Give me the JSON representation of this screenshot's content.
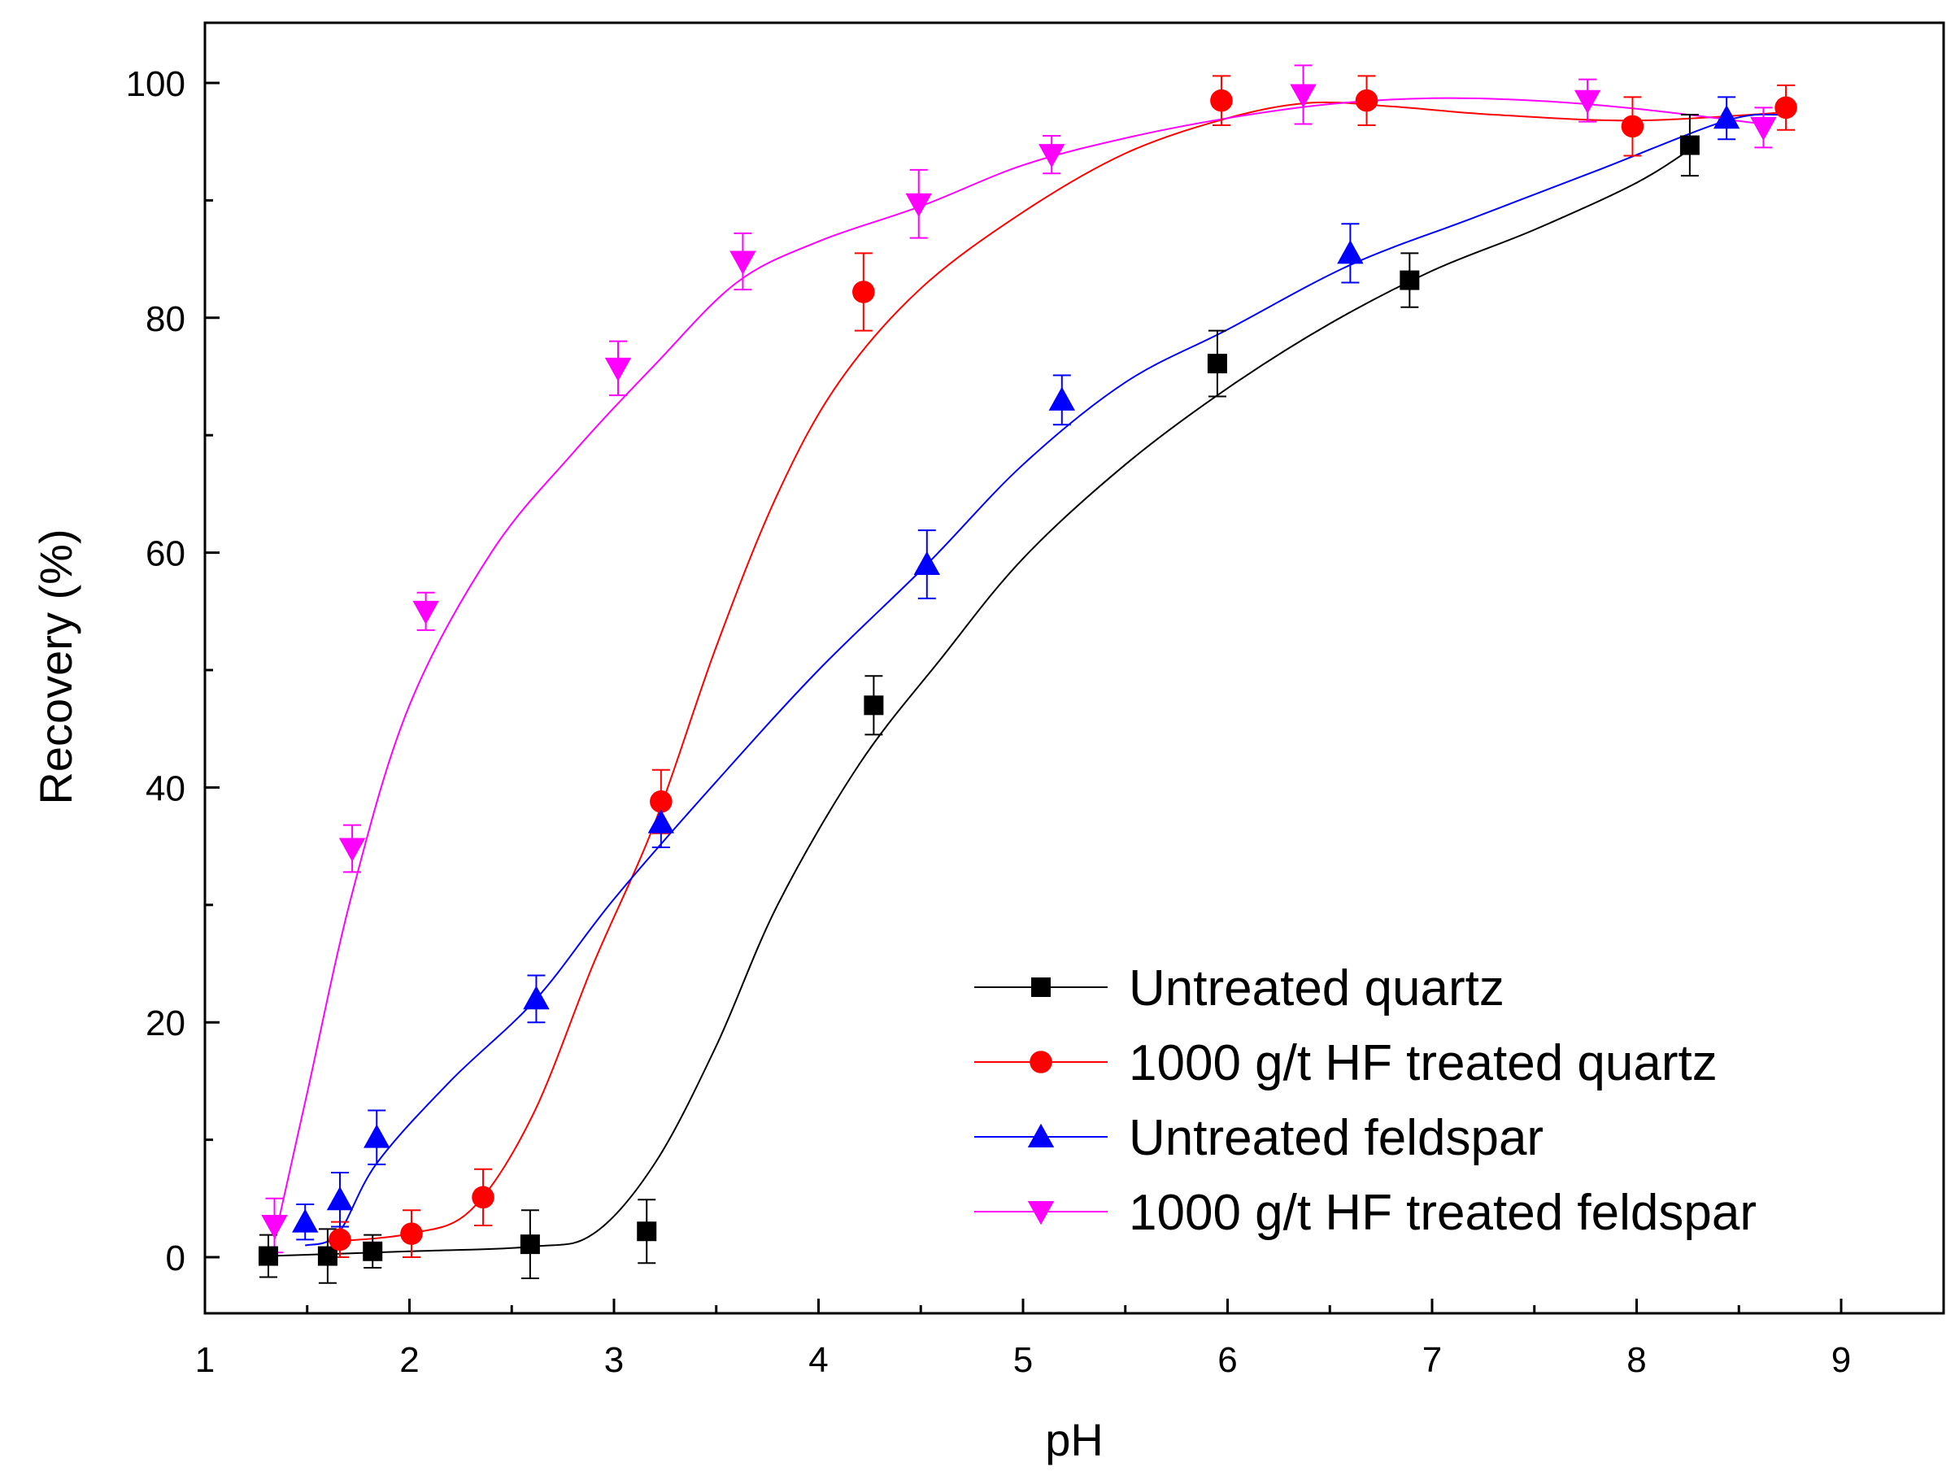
{
  "chart_data": {
    "type": "scatter",
    "title": "",
    "xlabel": "pH",
    "ylabel": "Recovery (%)",
    "xlim": [
      1,
      9.5
    ],
    "ylim": [
      -5,
      105
    ],
    "xticks": [
      1,
      2,
      3,
      4,
      5,
      6,
      7,
      8,
      9
    ],
    "yticks": [
      0,
      20,
      40,
      60,
      80,
      100
    ],
    "grid": false,
    "legend_position": "bottom-right",
    "series": [
      {
        "name": "Untreated quartz",
        "color": "#000000",
        "marker": "square",
        "points": [
          {
            "x": 1.31,
            "y": 0.1,
            "err": 1.8
          },
          {
            "x": 1.6,
            "y": 0.1,
            "err": 2.3
          },
          {
            "x": 1.82,
            "y": 0.5,
            "err": 1.4
          },
          {
            "x": 2.59,
            "y": 1.1,
            "err": 2.9
          },
          {
            "x": 3.16,
            "y": 2.2,
            "err": 2.7
          },
          {
            "x": 4.27,
            "y": 47.0,
            "err": 2.5
          },
          {
            "x": 5.95,
            "y": 76.1,
            "err": 2.8
          },
          {
            "x": 6.89,
            "y": 83.2,
            "err": 2.3
          },
          {
            "x": 8.26,
            "y": 94.7,
            "err": 2.6
          }
        ],
        "fit": [
          {
            "x": 1.3,
            "y": 0.1
          },
          {
            "x": 2.0,
            "y": 0.5
          },
          {
            "x": 2.6,
            "y": 0.9
          },
          {
            "x": 2.9,
            "y": 2.0
          },
          {
            "x": 3.2,
            "y": 8.0
          },
          {
            "x": 3.5,
            "y": 18.0
          },
          {
            "x": 3.8,
            "y": 30.0
          },
          {
            "x": 4.2,
            "y": 42.0
          },
          {
            "x": 4.6,
            "y": 51.0
          },
          {
            "x": 5.0,
            "y": 59.5
          },
          {
            "x": 5.5,
            "y": 67.5
          },
          {
            "x": 6.0,
            "y": 74.0
          },
          {
            "x": 6.5,
            "y": 79.5
          },
          {
            "x": 7.0,
            "y": 84.0
          },
          {
            "x": 7.5,
            "y": 87.5
          },
          {
            "x": 8.0,
            "y": 91.5
          },
          {
            "x": 8.3,
            "y": 94.8
          }
        ]
      },
      {
        "name": "1000 g/t HF treated quartz",
        "color": "#ff0000",
        "marker": "circle",
        "points": [
          {
            "x": 1.66,
            "y": 1.5,
            "err": 1.5
          },
          {
            "x": 2.01,
            "y": 2.0,
            "err": 2.0
          },
          {
            "x": 2.36,
            "y": 5.1,
            "err": 2.4
          },
          {
            "x": 3.23,
            "y": 38.8,
            "err": 2.7
          },
          {
            "x": 4.22,
            "y": 82.2,
            "err": 3.3
          },
          {
            "x": 5.97,
            "y": 98.5,
            "err": 2.1
          },
          {
            "x": 6.68,
            "y": 98.5,
            "err": 2.1
          },
          {
            "x": 7.98,
            "y": 96.3,
            "err": 2.5
          },
          {
            "x": 8.73,
            "y": 97.9,
            "err": 1.9
          }
        ],
        "fit": [
          {
            "x": 1.6,
            "y": 1.3
          },
          {
            "x": 2.0,
            "y": 2.0
          },
          {
            "x": 2.3,
            "y": 4.0
          },
          {
            "x": 2.6,
            "y": 12.0
          },
          {
            "x": 2.9,
            "y": 25.0
          },
          {
            "x": 3.2,
            "y": 37.0
          },
          {
            "x": 3.5,
            "y": 52.0
          },
          {
            "x": 3.8,
            "y": 65.0
          },
          {
            "x": 4.1,
            "y": 74.5
          },
          {
            "x": 4.5,
            "y": 82.5
          },
          {
            "x": 5.0,
            "y": 89.0
          },
          {
            "x": 5.5,
            "y": 94.0
          },
          {
            "x": 6.0,
            "y": 97.0
          },
          {
            "x": 6.4,
            "y": 98.3
          },
          {
            "x": 6.8,
            "y": 98.0
          },
          {
            "x": 7.3,
            "y": 97.3
          },
          {
            "x": 8.0,
            "y": 96.8
          },
          {
            "x": 8.73,
            "y": 97.5
          }
        ]
      },
      {
        "name": "Untreated feldspar",
        "color": "#0000ff",
        "marker": "triangle-up",
        "points": [
          {
            "x": 1.49,
            "y": 3.0,
            "err": 1.5
          },
          {
            "x": 1.66,
            "y": 4.9,
            "err": 2.3
          },
          {
            "x": 1.84,
            "y": 10.2,
            "err": 2.3
          },
          {
            "x": 2.62,
            "y": 22.0,
            "err": 2.0
          },
          {
            "x": 3.23,
            "y": 37.0,
            "err": 2.1
          },
          {
            "x": 4.53,
            "y": 59.0,
            "err": 2.9
          },
          {
            "x": 5.19,
            "y": 73.0,
            "err": 2.1
          },
          {
            "x": 6.6,
            "y": 85.5,
            "err": 2.5
          },
          {
            "x": 8.44,
            "y": 97.0,
            "err": 1.8
          }
        ],
        "fit": [
          {
            "x": 1.49,
            "y": 1.0
          },
          {
            "x": 1.65,
            "y": 2.0
          },
          {
            "x": 1.84,
            "y": 8.0
          },
          {
            "x": 2.2,
            "y": 15.0
          },
          {
            "x": 2.62,
            "y": 22.0
          },
          {
            "x": 3.0,
            "y": 30.5
          },
          {
            "x": 3.5,
            "y": 40.5
          },
          {
            "x": 4.0,
            "y": 50.0
          },
          {
            "x": 4.53,
            "y": 59.0
          },
          {
            "x": 5.0,
            "y": 67.5
          },
          {
            "x": 5.5,
            "y": 74.5
          },
          {
            "x": 6.0,
            "y": 79.0
          },
          {
            "x": 6.6,
            "y": 84.5
          },
          {
            "x": 7.2,
            "y": 88.5
          },
          {
            "x": 7.8,
            "y": 92.5
          },
          {
            "x": 8.44,
            "y": 96.8
          },
          {
            "x": 8.7,
            "y": 97.3
          }
        ]
      },
      {
        "name": "1000 g/t HF treated feldspar",
        "color": "#ff00ff",
        "marker": "triangle-down",
        "points": [
          {
            "x": 1.34,
            "y": 2.7,
            "err": 2.3
          },
          {
            "x": 1.72,
            "y": 34.8,
            "err": 2.0
          },
          {
            "x": 2.08,
            "y": 55.0,
            "err": 1.6
          },
          {
            "x": 3.02,
            "y": 75.7,
            "err": 2.3
          },
          {
            "x": 3.63,
            "y": 84.8,
            "err": 2.4
          },
          {
            "x": 4.49,
            "y": 89.7,
            "err": 2.9
          },
          {
            "x": 5.14,
            "y": 93.9,
            "err": 1.6
          },
          {
            "x": 6.37,
            "y": 99.0,
            "err": 2.5
          },
          {
            "x": 7.76,
            "y": 98.5,
            "err": 1.8
          },
          {
            "x": 8.62,
            "y": 96.2,
            "err": 1.7
          }
        ],
        "fit": [
          {
            "x": 1.34,
            "y": 1.5
          },
          {
            "x": 1.5,
            "y": 14.0
          },
          {
            "x": 1.72,
            "y": 31.0
          },
          {
            "x": 2.0,
            "y": 47.0
          },
          {
            "x": 2.4,
            "y": 60.0
          },
          {
            "x": 2.8,
            "y": 68.5
          },
          {
            "x": 3.2,
            "y": 76.0
          },
          {
            "x": 3.6,
            "y": 83.0
          },
          {
            "x": 4.0,
            "y": 86.5
          },
          {
            "x": 4.5,
            "y": 89.5
          },
          {
            "x": 5.0,
            "y": 93.0
          },
          {
            "x": 5.5,
            "y": 95.3
          },
          {
            "x": 6.0,
            "y": 97.0
          },
          {
            "x": 6.5,
            "y": 98.2
          },
          {
            "x": 7.0,
            "y": 98.7
          },
          {
            "x": 7.5,
            "y": 98.5
          },
          {
            "x": 8.0,
            "y": 97.8
          },
          {
            "x": 8.62,
            "y": 96.5
          }
        ]
      }
    ]
  }
}
